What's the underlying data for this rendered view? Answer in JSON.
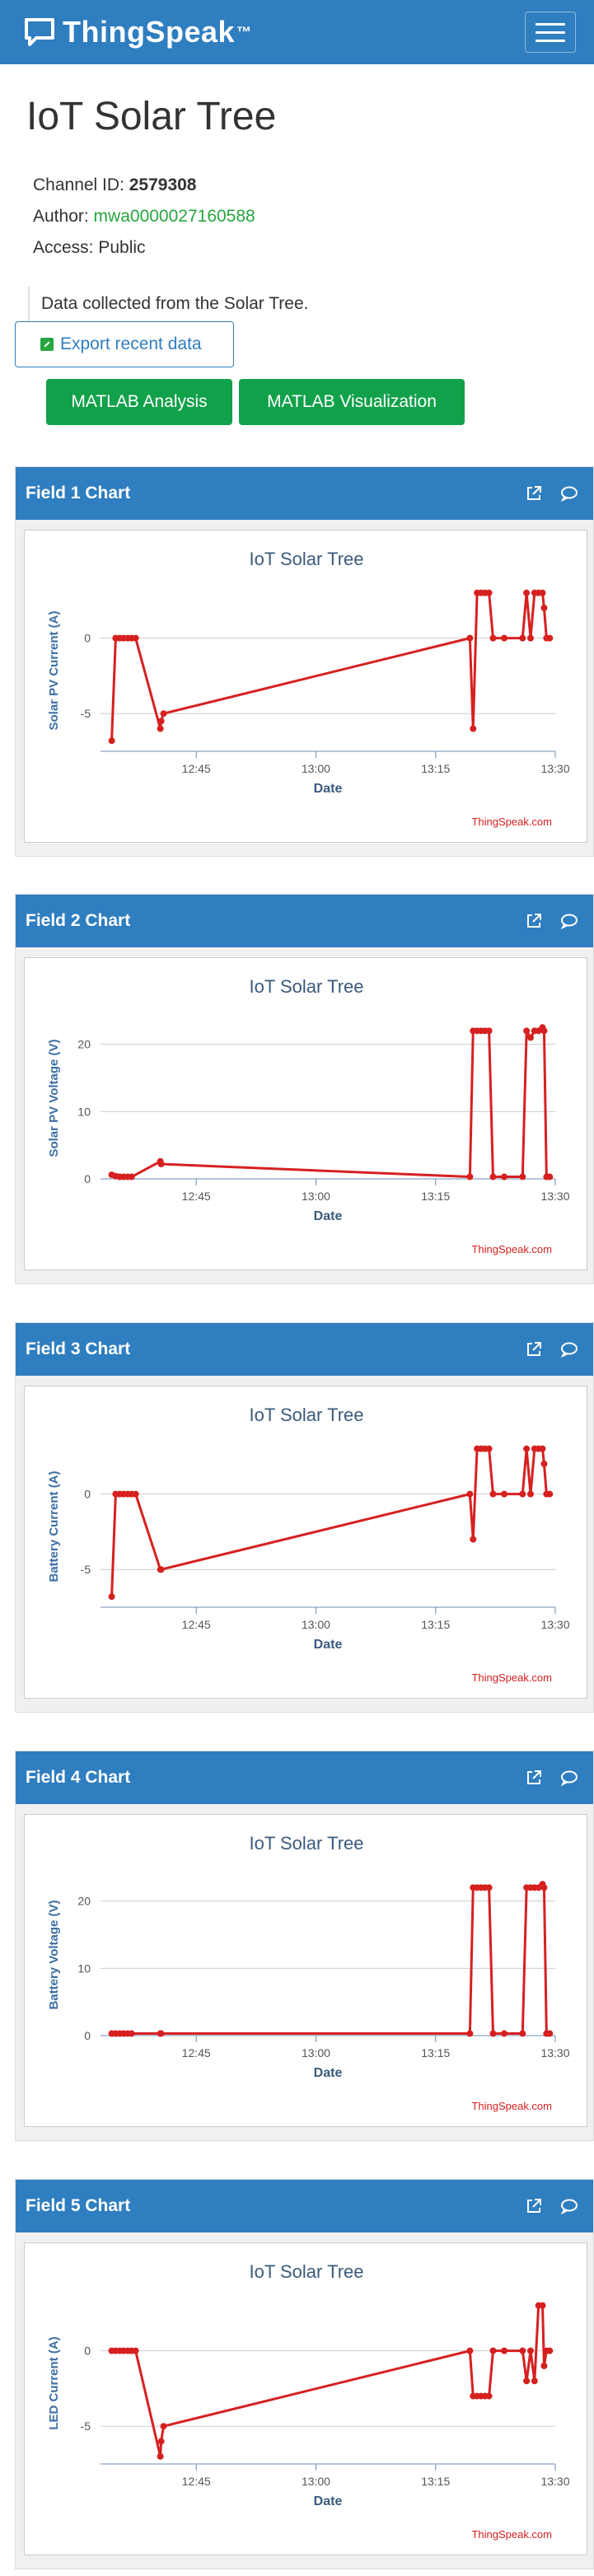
{
  "nav": {
    "brand": "ThingSpeak",
    "trademark": "™"
  },
  "channel": {
    "title": "IoT Solar Tree",
    "id_label": "Channel ID: ",
    "id": "2579308",
    "author_label": "Author: ",
    "author": "mwa0000027160588",
    "access": "Access: Public",
    "description": "Data collected from the Solar Tree."
  },
  "actions": {
    "export": "Export recent data",
    "matlab_analysis": "MATLAB Analysis",
    "matlab_visualization": "MATLAB Visualization"
  },
  "colors": {
    "brand": "#2f7ec0",
    "series": "#d62020",
    "green_button": "#12a14b",
    "author_link": "#27a540"
  },
  "chart_data": [
    {
      "panel": "Field 1 Chart",
      "type": "line",
      "title": "IoT Solar Tree",
      "xlabel": "Date",
      "ylabel": "Solar PV Current (A)",
      "watermark": "ThingSpeak.com",
      "xticks": [
        "12:45",
        "13:00",
        "13:15",
        "13:30"
      ],
      "yticks": [
        0,
        -5
      ],
      "xlim": [
        "12:33",
        "13:30"
      ],
      "ylim": [
        -7.5,
        3.2
      ],
      "x": [
        "12:34.4",
        "12:34.9",
        "12:35.4",
        "12:35.9",
        "12:36.4",
        "12:36.9",
        "12:37.4",
        "12:40.5",
        "12:40.6",
        "12:40.9",
        "13:19.3",
        "13:19.7",
        "13:20.2",
        "13:20.7",
        "13:21.2",
        "13:21.7",
        "13:22.2",
        "13:23.6",
        "13:25.9",
        "13:26.4",
        "13:26.9",
        "13:27.4",
        "13:27.9",
        "13:28.4",
        "13:28.6",
        "13:28.9",
        "13:29.3"
      ],
      "values": [
        -6.8,
        0,
        0,
        0,
        0,
        0,
        0,
        -6.0,
        -5.5,
        -5.0,
        0,
        -6.0,
        3.0,
        3.0,
        3.0,
        3.0,
        0,
        0,
        0,
        3.0,
        0,
        3.0,
        3.0,
        3.0,
        2.0,
        0,
        0
      ]
    },
    {
      "panel": "Field 2 Chart",
      "type": "line",
      "title": "IoT Solar Tree",
      "xlabel": "Date",
      "ylabel": "Solar PV Voltage (V)",
      "watermark": "ThingSpeak.com",
      "xticks": [
        "12:45",
        "13:00",
        "13:15",
        "13:30"
      ],
      "yticks": [
        20,
        10,
        0
      ],
      "xlim": [
        "12:33",
        "13:30"
      ],
      "ylim": [
        0,
        24
      ],
      "x": [
        "12:34.4",
        "12:34.9",
        "12:35.4",
        "12:35.9",
        "12:36.4",
        "12:36.9",
        "12:40.5",
        "12:40.6",
        "13:19.3",
        "13:19.7",
        "13:20.2",
        "13:20.7",
        "13:21.2",
        "13:21.7",
        "13:22.2",
        "13:23.6",
        "13:25.9",
        "13:26.4",
        "13:26.9",
        "13:27.4",
        "13:27.9",
        "13:28.4",
        "13:28.6",
        "13:28.9",
        "13:29.3"
      ],
      "values": [
        0.6,
        0.4,
        0.3,
        0.3,
        0.3,
        0.3,
        2.6,
        2.2,
        0.3,
        22,
        22,
        22,
        22,
        22,
        0.3,
        0.3,
        0.3,
        22,
        21,
        22,
        22,
        22.5,
        22,
        0.3,
        0.3
      ]
    },
    {
      "panel": "Field 3 Chart",
      "type": "line",
      "title": "IoT Solar Tree",
      "xlabel": "Date",
      "ylabel": "Battery Current (A)",
      "watermark": "ThingSpeak.com",
      "xticks": [
        "12:45",
        "13:00",
        "13:15",
        "13:30"
      ],
      "yticks": [
        0,
        -5
      ],
      "xlim": [
        "12:33",
        "13:30"
      ],
      "ylim": [
        -7.5,
        3.2
      ],
      "x": [
        "12:34.4",
        "12:34.9",
        "12:35.4",
        "12:35.9",
        "12:36.4",
        "12:36.9",
        "12:37.4",
        "12:40.5",
        "12:40.6",
        "13:19.3",
        "13:19.7",
        "13:20.2",
        "13:20.7",
        "13:21.2",
        "13:21.7",
        "13:22.2",
        "13:23.6",
        "13:25.9",
        "13:26.4",
        "13:26.9",
        "13:27.4",
        "13:27.9",
        "13:28.4",
        "13:28.6",
        "13:28.9",
        "13:29.3"
      ],
      "values": [
        -6.8,
        0,
        0,
        0,
        0,
        0,
        0,
        -5.0,
        -5.0,
        0,
        -3.0,
        3.0,
        3.0,
        3.0,
        3.0,
        0,
        0,
        0,
        3.0,
        0,
        3.0,
        3.0,
        3.0,
        2.0,
        0,
        0
      ]
    },
    {
      "panel": "Field 4 Chart",
      "type": "line",
      "title": "IoT Solar Tree",
      "xlabel": "Date",
      "ylabel": "Battery Voltage (V)",
      "watermark": "ThingSpeak.com",
      "xticks": [
        "12:45",
        "13:00",
        "13:15",
        "13:30"
      ],
      "yticks": [
        20,
        10,
        0
      ],
      "xlim": [
        "12:33",
        "13:30"
      ],
      "ylim": [
        0,
        24
      ],
      "x": [
        "12:34.4",
        "12:34.9",
        "12:35.4",
        "12:35.9",
        "12:36.4",
        "12:36.9",
        "12:40.5",
        "12:40.6",
        "13:19.3",
        "13:19.7",
        "13:20.2",
        "13:20.7",
        "13:21.2",
        "13:21.7",
        "13:22.2",
        "13:23.6",
        "13:25.9",
        "13:26.4",
        "13:26.9",
        "13:27.4",
        "13:27.9",
        "13:28.4",
        "13:28.6",
        "13:28.9",
        "13:29.3"
      ],
      "values": [
        0.3,
        0.3,
        0.3,
        0.3,
        0.3,
        0.3,
        0.3,
        0.3,
        0.3,
        22,
        22,
        22,
        22,
        22,
        0.3,
        0.3,
        0.3,
        22,
        22,
        22,
        22,
        22.5,
        22,
        0.3,
        0.3
      ]
    },
    {
      "panel": "Field 5 Chart",
      "type": "line",
      "title": "IoT Solar Tree",
      "xlabel": "Date",
      "ylabel": "LED Current (A)",
      "watermark": "ThingSpeak.com",
      "xticks": [
        "12:45",
        "13:00",
        "13:15",
        "13:30"
      ],
      "yticks": [
        0,
        -5
      ],
      "xlim": [
        "12:33",
        "13:30"
      ],
      "ylim": [
        -7.5,
        3.2
      ],
      "x": [
        "12:34.4",
        "12:34.9",
        "12:35.4",
        "12:35.9",
        "12:36.4",
        "12:36.9",
        "12:37.4",
        "12:40.5",
        "12:40.6",
        "12:40.9",
        "13:19.3",
        "13:19.7",
        "13:20.2",
        "13:20.7",
        "13:21.2",
        "13:21.7",
        "13:22.2",
        "13:23.6",
        "13:25.9",
        "13:26.4",
        "13:26.9",
        "13:27.4",
        "13:27.9",
        "13:28.4",
        "13:28.6",
        "13:28.9",
        "13:29.3"
      ],
      "values": [
        0,
        0,
        0,
        0,
        0,
        0,
        0,
        -7.0,
        -6.0,
        -5.0,
        0,
        -3.0,
        -3.0,
        -3.0,
        -3.0,
        -3.0,
        0,
        0,
        0,
        -2.0,
        0,
        -2.0,
        3.0,
        3.0,
        -1.0,
        0,
        0
      ]
    }
  ]
}
